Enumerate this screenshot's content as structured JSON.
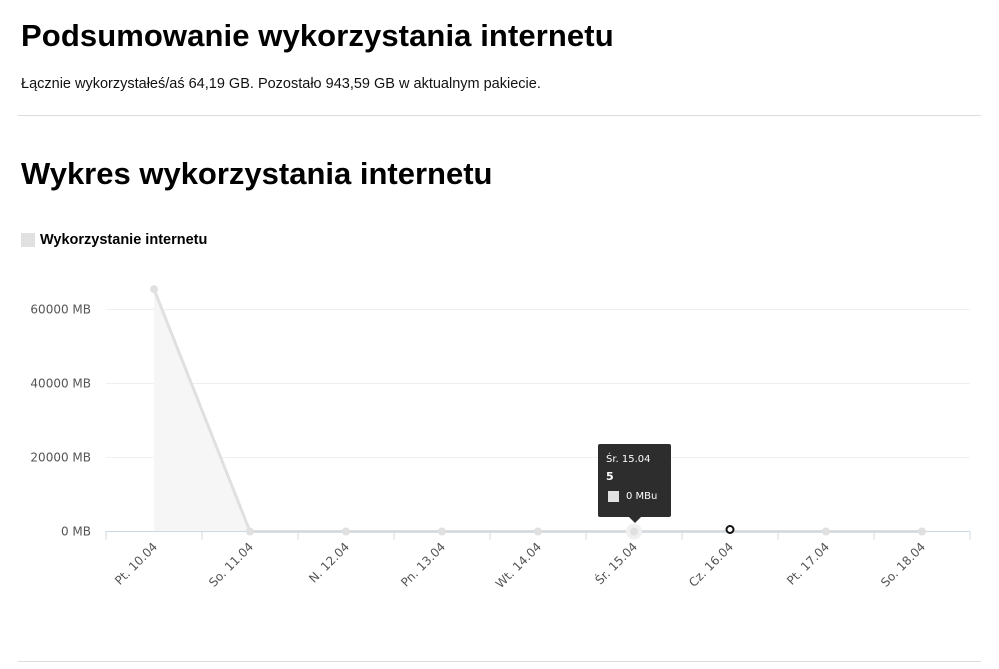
{
  "summary": {
    "title": "Podsumowanie wykorzystania internetu",
    "text": "Łącznie wykorzystałeś/aś 64,19 GB. Pozostało 943,59 GB w aktualnym pakiecie."
  },
  "chart_section": {
    "title": "Wykres wykorzystania internetu"
  },
  "legend": {
    "label": "Wykorzystanie internetu",
    "color": "#e1e1e1"
  },
  "tooltip": {
    "date": "Śr. 15.04",
    "value": "5",
    "series_text": "0 MBu"
  },
  "chart_data": {
    "type": "area",
    "categories": [
      "Pt. 10.04",
      "So. 11.04",
      "N. 12.04",
      "Pn. 13.04",
      "Wt. 14.04",
      "Śr. 15.04",
      "Cz. 16.04",
      "Pt. 17.04",
      "So. 18.04"
    ],
    "series": [
      {
        "name": "Wykorzystanie internetu",
        "values": [
          65500,
          0,
          0,
          0,
          0,
          0,
          0,
          0,
          0
        ]
      }
    ],
    "y_ticks": [
      "0 MB",
      "20000 MB",
      "40000 MB",
      "60000 MB"
    ],
    "ylim": [
      0,
      60000
    ],
    "grid": true,
    "line_color": "#e0e0e0",
    "area_color": "#f6f6f6",
    "highlighted_index": 5,
    "marked_index": 6
  }
}
